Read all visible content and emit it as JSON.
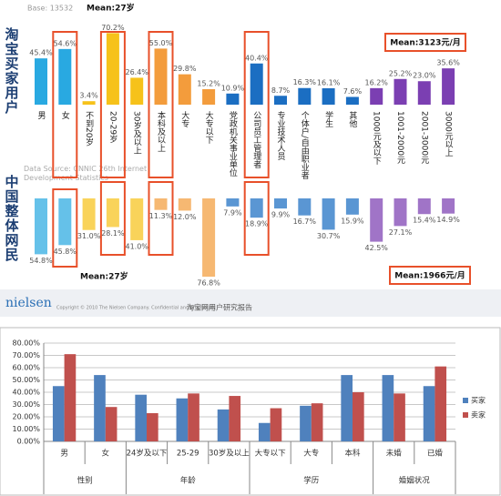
{
  "chart_data": [
    {
      "type": "diverging_bar",
      "base_note": "Base: 13532",
      "source_note": "Data Source: CNNIC 26th Internet Development Statistics",
      "categories": [
        "男",
        "女",
        "不到20岁",
        "20-29岁",
        "30岁及以上",
        "本科及以上",
        "大专",
        "大专以下",
        "党政机关事业单位",
        "公司员工管理者",
        "专业技术人员",
        "个体户/自由职业者",
        "学生",
        "其他",
        "1000元及以下",
        "1001-2000元",
        "2001-3000元",
        "3000元以上"
      ],
      "colors": [
        "#29a9e1",
        "#29a9e1",
        "#f6c21a",
        "#f6c21a",
        "#f6c21a",
        "#f39c3c",
        "#f39c3c",
        "#f39c3c",
        "#1b6ec2",
        "#1b6ec2",
        "#1b6ec2",
        "#1b6ec2",
        "#1b6ec2",
        "#1b6ec2",
        "#7b3fb2",
        "#7b3fb2",
        "#7b3fb2",
        "#7b3fb2"
      ],
      "series": [
        {
          "name": "淘宝买家用户",
          "values": [
            45.4,
            54.6,
            3.4,
            70.2,
            26.4,
            55.0,
            29.8,
            15.2,
            10.9,
            40.4,
            8.7,
            16.3,
            16.1,
            7.6,
            16.2,
            25.2,
            23.0,
            35.6
          ],
          "value_labels": [
            "45.4%",
            "54.6%",
            "3.4%",
            "70.2%",
            "26.4%",
            "55.0%",
            "29.8%",
            "15.2%",
            "10.9%",
            "40.4%",
            "8.7%",
            "16.3%",
            "16.1%",
            "7.6%",
            "16.2%",
            "25.2%",
            "23.0%",
            "35.6%"
          ]
        },
        {
          "name": "中国整体网民",
          "values": [
            54.8,
            45.8,
            31.0,
            28.1,
            41.0,
            11.3,
            12.0,
            76.8,
            7.9,
            18.9,
            9.9,
            16.7,
            30.7,
            15.9,
            42.5,
            27.1,
            15.4,
            14.9
          ],
          "value_labels": [
            "54.8%",
            "45.8%",
            "31.0%",
            "28.1%",
            "41.0%",
            "11.3%",
            "12.0%",
            "76.8%",
            "7.9%",
            "18.9%",
            "9.9%",
            "16.7%",
            "30.7%",
            "15.9%",
            "42.5%",
            "27.1%",
            "15.4%",
            "14.9%"
          ]
        }
      ],
      "annotations": [
        "Mean:27岁",
        "Mean:3123元/月",
        "Mean:27岁",
        "Mean:1966元/月"
      ],
      "footer": {
        "brand": "nielsen",
        "copyright": "Copyright © 2010 The Nielsen Company. Confidential and proprietary.",
        "report": "淘宝网用户研究报告"
      }
    },
    {
      "type": "bar",
      "categories": [
        "男",
        "女",
        "24岁及以下",
        "25-29",
        "30岁及以上",
        "大专以下",
        "大专",
        "本科",
        "未婚",
        "已婚"
      ],
      "groups": [
        {
          "name": "性别",
          "categories": [
            "男",
            "女"
          ]
        },
        {
          "name": "年龄",
          "categories": [
            "24岁及以下",
            "25-29",
            "30岁及以上"
          ]
        },
        {
          "name": "学历",
          "categories": [
            "大专以下",
            "大专",
            "本科"
          ]
        },
        {
          "name": "婚姻状况",
          "categories": [
            "未婚",
            "已婚"
          ]
        }
      ],
      "series": [
        {
          "name": "买家",
          "color": "#4f81bd",
          "values": [
            45,
            54,
            38,
            35,
            26,
            15,
            29,
            54,
            54,
            45
          ]
        },
        {
          "name": "卖家",
          "color": "#c0504d",
          "values": [
            71,
            28,
            23,
            39,
            37,
            27,
            31,
            40,
            39,
            61
          ]
        }
      ],
      "ylim": [
        0,
        80
      ],
      "yticks": [
        {
          "value": 0,
          "label": "0.00%"
        },
        {
          "value": 10,
          "label": "10.00%"
        },
        {
          "value": 20,
          "label": "20.00%"
        },
        {
          "value": 30,
          "label": "30.00%"
        },
        {
          "value": 40,
          "label": "40.00%"
        },
        {
          "value": 50,
          "label": "50.00%"
        },
        {
          "value": 60,
          "label": "60.00%"
        },
        {
          "value": 70,
          "label": "70.00%"
        },
        {
          "value": 80,
          "label": "80.00%"
        }
      ],
      "grid": true
    }
  ]
}
